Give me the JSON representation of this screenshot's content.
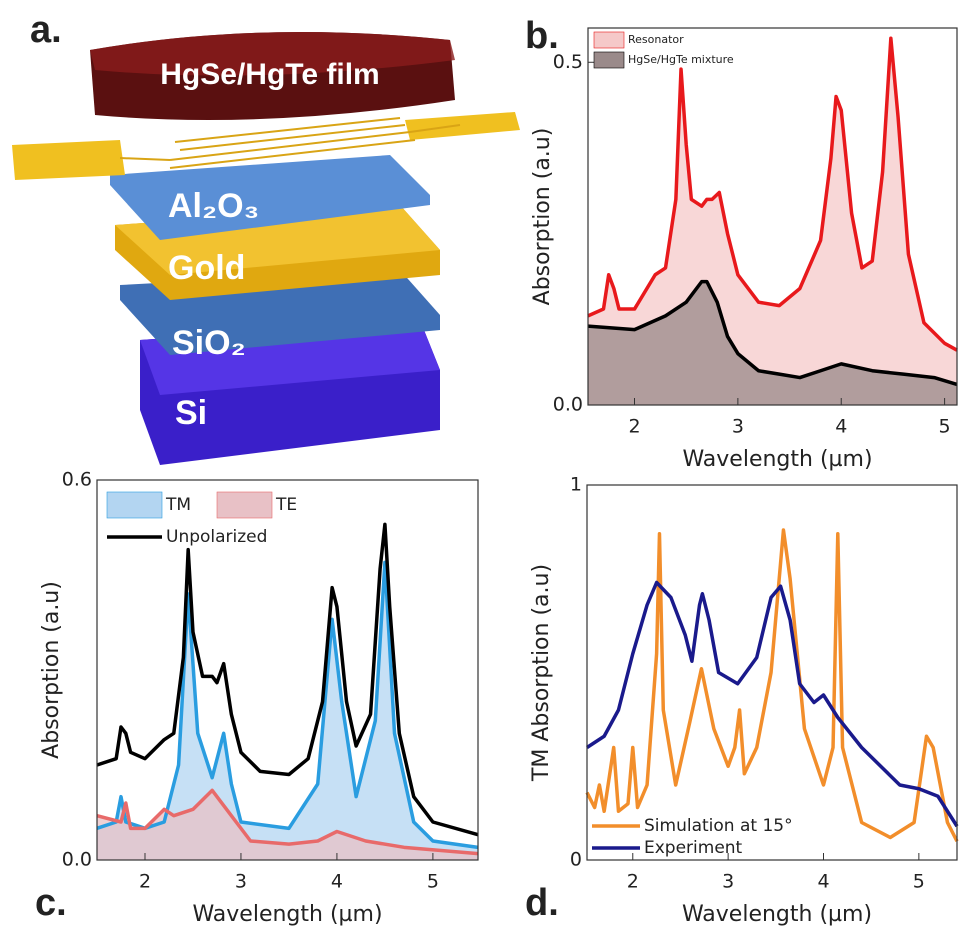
{
  "diagram": {
    "label": "a.",
    "film": "HgSe/HgTe film",
    "layers": [
      "Al₂O₃",
      "Gold",
      "SiO₂",
      "Si"
    ]
  },
  "chart_data": [
    {
      "type": "area-line",
      "label": "b.",
      "xlabel": "Wavelength (µm)",
      "ylabel": "Absorption (a.u)",
      "xlim": [
        1.55,
        5.12
      ],
      "xticks": [
        2,
        3,
        4,
        5
      ],
      "ylim": [
        0,
        0.55
      ],
      "yticks": [
        {
          "value": 0,
          "label": "0.0"
        },
        {
          "value": 0.5,
          "label": "0.5"
        }
      ],
      "series": [
        {
          "name": "Resonator",
          "color": "#e8191c",
          "fill": "#f5c9c9",
          "x": [
            1.55,
            1.7,
            1.75,
            1.8,
            1.85,
            2.0,
            2.2,
            2.3,
            2.4,
            2.45,
            2.5,
            2.55,
            2.65,
            2.7,
            2.75,
            2.82,
            2.9,
            3.0,
            3.2,
            3.4,
            3.6,
            3.8,
            3.9,
            3.95,
            4.0,
            4.1,
            4.2,
            4.3,
            4.4,
            4.48,
            4.55,
            4.65,
            4.8,
            5.0,
            5.12
          ],
          "values": [
            0.13,
            0.14,
            0.19,
            0.17,
            0.14,
            0.14,
            0.19,
            0.2,
            0.3,
            0.49,
            0.38,
            0.3,
            0.29,
            0.3,
            0.3,
            0.31,
            0.25,
            0.19,
            0.15,
            0.145,
            0.17,
            0.24,
            0.36,
            0.45,
            0.43,
            0.28,
            0.2,
            0.21,
            0.34,
            0.535,
            0.42,
            0.22,
            0.12,
            0.09,
            0.08
          ]
        },
        {
          "name": "HgSe/HgTe mixture",
          "color": "#000000",
          "fill": "#9a8a8a",
          "x": [
            1.55,
            2.0,
            2.3,
            2.5,
            2.65,
            2.7,
            2.8,
            2.9,
            3.0,
            3.2,
            3.4,
            3.6,
            3.8,
            4.0,
            4.3,
            4.6,
            4.9,
            5.12
          ],
          "values": [
            0.115,
            0.11,
            0.13,
            0.15,
            0.18,
            0.18,
            0.15,
            0.1,
            0.075,
            0.05,
            0.045,
            0.04,
            0.05,
            0.06,
            0.05,
            0.045,
            0.04,
            0.03
          ]
        }
      ]
    },
    {
      "type": "area-line",
      "label": "c.",
      "xlabel": "Wavelength (µm)",
      "ylabel": "Absorption (a.u)",
      "xlim": [
        1.5,
        5.47
      ],
      "xticks": [
        2,
        3,
        4,
        5
      ],
      "ylim": [
        0,
        0.6
      ],
      "yticks": [
        {
          "value": 0,
          "label": "0.0"
        },
        {
          "value": 0.6,
          "label": "0.6"
        }
      ],
      "series": [
        {
          "name": "TM",
          "color": "#2a9de0",
          "fill": "#b3d5f1",
          "x": [
            1.5,
            1.7,
            1.75,
            1.8,
            2.0,
            2.2,
            2.35,
            2.45,
            2.55,
            2.7,
            2.82,
            2.9,
            3.0,
            3.5,
            3.8,
            3.95,
            4.05,
            4.2,
            4.4,
            4.5,
            4.6,
            4.8,
            5.0,
            5.47
          ],
          "values": [
            0.05,
            0.06,
            0.1,
            0.06,
            0.05,
            0.06,
            0.15,
            0.42,
            0.2,
            0.13,
            0.2,
            0.12,
            0.06,
            0.05,
            0.12,
            0.38,
            0.25,
            0.1,
            0.22,
            0.47,
            0.2,
            0.06,
            0.03,
            0.02
          ]
        },
        {
          "name": "TE",
          "color": "#e86a6a",
          "fill": "#e8c1c6",
          "x": [
            1.5,
            1.75,
            1.8,
            1.85,
            2.0,
            2.2,
            2.3,
            2.5,
            2.7,
            2.9,
            3.1,
            3.5,
            3.8,
            4.0,
            4.3,
            4.7,
            5.47
          ],
          "values": [
            0.07,
            0.06,
            0.09,
            0.05,
            0.05,
            0.08,
            0.07,
            0.08,
            0.11,
            0.07,
            0.03,
            0.025,
            0.03,
            0.045,
            0.03,
            0.02,
            0.01
          ]
        },
        {
          "name": "Unpolarized",
          "color": "#000000",
          "x": [
            1.5,
            1.7,
            1.75,
            1.8,
            1.85,
            2.0,
            2.2,
            2.3,
            2.4,
            2.45,
            2.5,
            2.6,
            2.7,
            2.75,
            2.82,
            2.9,
            3.0,
            3.2,
            3.5,
            3.7,
            3.85,
            3.95,
            4.0,
            4.1,
            4.2,
            4.35,
            4.45,
            4.5,
            4.55,
            4.65,
            4.8,
            5.0,
            5.47
          ],
          "values": [
            0.15,
            0.16,
            0.21,
            0.2,
            0.17,
            0.16,
            0.19,
            0.2,
            0.32,
            0.49,
            0.36,
            0.29,
            0.29,
            0.28,
            0.31,
            0.23,
            0.17,
            0.14,
            0.135,
            0.16,
            0.25,
            0.43,
            0.4,
            0.25,
            0.18,
            0.23,
            0.46,
            0.53,
            0.4,
            0.2,
            0.1,
            0.06,
            0.04
          ]
        }
      ]
    },
    {
      "type": "line",
      "label": "d.",
      "xlabel": "Wavelength (µm)",
      "ylabel": "TM Absorption (a.u)",
      "xlim": [
        1.52,
        5.4
      ],
      "xticks": [
        2,
        3,
        4,
        5
      ],
      "ylim": [
        0,
        1
      ],
      "yticks": [
        0,
        1
      ],
      "series": [
        {
          "name": "Simulation at 15°",
          "color": "#f28e2b",
          "x": [
            1.52,
            1.6,
            1.65,
            1.7,
            1.8,
            1.85,
            1.95,
            2.0,
            2.05,
            2.15,
            2.25,
            2.28,
            2.32,
            2.45,
            2.6,
            2.72,
            2.85,
            3.0,
            3.07,
            3.12,
            3.17,
            3.3,
            3.45,
            3.58,
            3.65,
            3.8,
            4.0,
            4.1,
            4.15,
            4.2,
            4.4,
            4.7,
            4.95,
            5.08,
            5.15,
            5.3,
            5.4
          ],
          "values": [
            0.18,
            0.14,
            0.2,
            0.13,
            0.3,
            0.13,
            0.15,
            0.3,
            0.14,
            0.2,
            0.55,
            0.87,
            0.4,
            0.2,
            0.37,
            0.51,
            0.35,
            0.25,
            0.3,
            0.4,
            0.23,
            0.3,
            0.5,
            0.88,
            0.75,
            0.35,
            0.2,
            0.3,
            0.87,
            0.3,
            0.1,
            0.06,
            0.1,
            0.33,
            0.3,
            0.1,
            0.05
          ]
        },
        {
          "name": "Experiment",
          "color": "#1a1a8c",
          "x": [
            1.52,
            1.7,
            1.85,
            2.0,
            2.15,
            2.25,
            2.4,
            2.55,
            2.62,
            2.7,
            2.73,
            2.8,
            2.9,
            3.1,
            3.3,
            3.45,
            3.55,
            3.65,
            3.75,
            3.9,
            4.0,
            4.15,
            4.4,
            4.8,
            5.0,
            5.2,
            5.4
          ],
          "values": [
            0.3,
            0.33,
            0.4,
            0.55,
            0.68,
            0.74,
            0.7,
            0.6,
            0.53,
            0.68,
            0.71,
            0.64,
            0.5,
            0.47,
            0.54,
            0.7,
            0.73,
            0.64,
            0.47,
            0.42,
            0.44,
            0.38,
            0.3,
            0.2,
            0.19,
            0.17,
            0.09
          ]
        }
      ]
    }
  ]
}
